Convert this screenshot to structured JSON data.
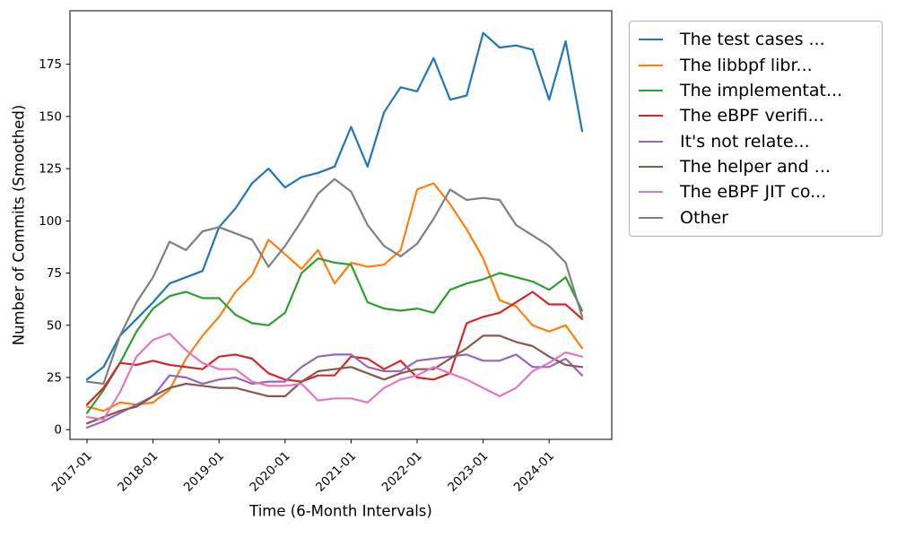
{
  "figure": {
    "ylabel": "Number of Commits (Smoothed)",
    "xlabel": "Time (6-Month Intervals)",
    "yticks": [
      0,
      25,
      50,
      75,
      100,
      125,
      150,
      175
    ],
    "xticklabels": [
      "2017-01",
      "2018-01",
      "2019-01",
      "2020-01",
      "2021-01",
      "2022-01",
      "2023-01",
      "2024-01"
    ]
  },
  "chart_data": {
    "type": "line",
    "title": "",
    "xlabel": "Time (6-Month Intervals)",
    "ylabel": "Number of Commits (Smoothed)",
    "ylim": [
      -5,
      200
    ],
    "grid": false,
    "legend_position": "upper right, outside plot",
    "x": [
      "2017-01",
      "2017-04",
      "2017-07",
      "2017-10",
      "2018-01",
      "2018-04",
      "2018-07",
      "2018-10",
      "2019-01",
      "2019-04",
      "2019-07",
      "2019-10",
      "2020-01",
      "2020-04",
      "2020-07",
      "2020-10",
      "2021-01",
      "2021-04",
      "2021-07",
      "2021-10",
      "2022-01",
      "2022-04",
      "2022-07",
      "2022-10",
      "2023-01",
      "2023-04",
      "2023-07",
      "2023-10",
      "2024-01",
      "2024-04",
      "2024-07"
    ],
    "series": [
      {
        "name": "The test cases ...",
        "color": "#1f77b4",
        "values": [
          24,
          30,
          45,
          53,
          61,
          70,
          73,
          76,
          97,
          106,
          118,
          125,
          116,
          121,
          123,
          126,
          145,
          126,
          152,
          164,
          162,
          178,
          158,
          160,
          190,
          183,
          184,
          182,
          158,
          186,
          143
        ]
      },
      {
        "name": "The libbpf libr...",
        "color": "#ff7f0e",
        "values": [
          11,
          9,
          13,
          12,
          13,
          19,
          34,
          45,
          54,
          66,
          74,
          91,
          84,
          77,
          86,
          70,
          80,
          78,
          79,
          86,
          115,
          118,
          108,
          96,
          82,
          62,
          59,
          50,
          47,
          50,
          39
        ]
      },
      {
        "name": "The implementat...",
        "color": "#2ca02c",
        "values": [
          8,
          19,
          32,
          47,
          58,
          64,
          66,
          63,
          63,
          55,
          51,
          50,
          56,
          75,
          82,
          80,
          79,
          61,
          58,
          57,
          58,
          56,
          67,
          70,
          72,
          75,
          73,
          71,
          67,
          73,
          57
        ]
      },
      {
        "name": "The eBPF verifi...",
        "color": "#d62728",
        "values": [
          12,
          20,
          32,
          31,
          33,
          31,
          30,
          29,
          35,
          36,
          34,
          27,
          24,
          23,
          26,
          26,
          35,
          34,
          29,
          33,
          25,
          24,
          27,
          51,
          54,
          56,
          61,
          66,
          60,
          60,
          53
        ]
      },
      {
        "name": "It's not relate...",
        "color": "#9467bd",
        "values": [
          1,
          4,
          8,
          12,
          16,
          26,
          25,
          22,
          24,
          25,
          22,
          23,
          23,
          30,
          35,
          36,
          36,
          30,
          28,
          28,
          33,
          34,
          35,
          36,
          33,
          33,
          36,
          30,
          30,
          34,
          26
        ]
      },
      {
        "name": "The helper and ...",
        "color": "#8c564b",
        "values": [
          3,
          6,
          9,
          11,
          16,
          20,
          22,
          21,
          20,
          20,
          18,
          16,
          16,
          23,
          28,
          29,
          30,
          27,
          24,
          27,
          29,
          29,
          34,
          39,
          45,
          45,
          42,
          40,
          35,
          31,
          30
        ]
      },
      {
        "name": "The eBPF JIT co...",
        "color": "#e377c2",
        "values": [
          6,
          5,
          18,
          35,
          43,
          46,
          38,
          32,
          29,
          29,
          23,
          21,
          21,
          22,
          14,
          15,
          15,
          13,
          20,
          24,
          26,
          30,
          27,
          24,
          20,
          16,
          20,
          28,
          32,
          37,
          35
        ]
      },
      {
        "name": "Other",
        "color": "#7f7f7f",
        "values": [
          23,
          22,
          45,
          61,
          73,
          90,
          86,
          95,
          97,
          94,
          91,
          78,
          88,
          100,
          113,
          120,
          114,
          98,
          88,
          83,
          89,
          101,
          115,
          110,
          111,
          110,
          98,
          93,
          88,
          80,
          54
        ]
      }
    ],
    "xtick_indices": [
      0,
      4,
      8,
      12,
      16,
      20,
      24,
      28
    ]
  }
}
